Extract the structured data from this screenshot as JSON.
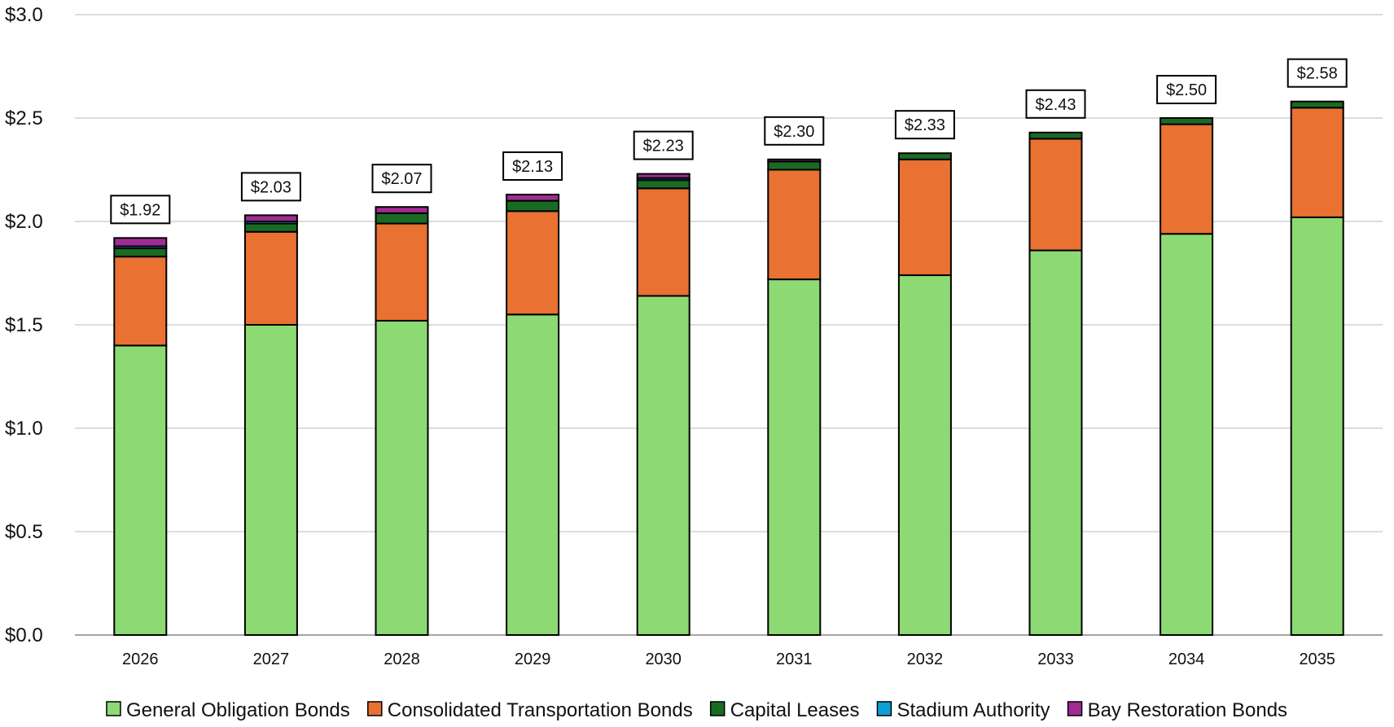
{
  "chart_data": {
    "type": "bar",
    "stacked": true,
    "title": "",
    "xlabel": "",
    "ylabel": "",
    "ylim": [
      0,
      3.0
    ],
    "y_ticks": [
      "$0.0",
      "$0.5",
      "$1.0",
      "$1.5",
      "$2.0",
      "$2.5",
      "$3.0"
    ],
    "y_tick_values": [
      0,
      0.5,
      1.0,
      1.5,
      2.0,
      2.5,
      3.0
    ],
    "grid": true,
    "legend_position": "bottom",
    "categories": [
      "2026",
      "2027",
      "2028",
      "2029",
      "2030",
      "2031",
      "2032",
      "2033",
      "2034",
      "2035"
    ],
    "series": [
      {
        "name": "General Obligation Bonds",
        "color": "#8DDA74",
        "values": [
          1.4,
          1.5,
          1.52,
          1.55,
          1.64,
          1.72,
          1.74,
          1.86,
          1.94,
          2.02
        ]
      },
      {
        "name": "Consolidated Transportation Bonds",
        "color": "#E97132",
        "values": [
          0.43,
          0.45,
          0.47,
          0.5,
          0.52,
          0.53,
          0.56,
          0.54,
          0.53,
          0.53
        ]
      },
      {
        "name": "Capital Leases",
        "color": "#196B24",
        "values": [
          0.04,
          0.04,
          0.05,
          0.05,
          0.04,
          0.04,
          0.03,
          0.03,
          0.03,
          0.03
        ]
      },
      {
        "name": "Stadium Authority",
        "color": "#0F9ED5",
        "values": [
          0.01,
          0.01,
          0.0,
          0.0,
          0.01,
          0.0,
          0.0,
          0.0,
          0.0,
          0.0
        ]
      },
      {
        "name": "Bay Restoration Bonds",
        "color": "#A02B93",
        "values": [
          0.04,
          0.03,
          0.03,
          0.03,
          0.02,
          0.01,
          0.0,
          0.0,
          0.0,
          0.0
        ]
      }
    ],
    "totals": [
      "$1.92",
      "$2.03",
      "$2.07",
      "$2.13",
      "$2.23",
      "$2.30",
      "$2.33",
      "$2.43",
      "$2.50",
      "$2.58"
    ],
    "total_values": [
      1.92,
      2.03,
      2.07,
      2.13,
      2.23,
      2.3,
      2.33,
      2.43,
      2.5,
      2.58
    ]
  }
}
